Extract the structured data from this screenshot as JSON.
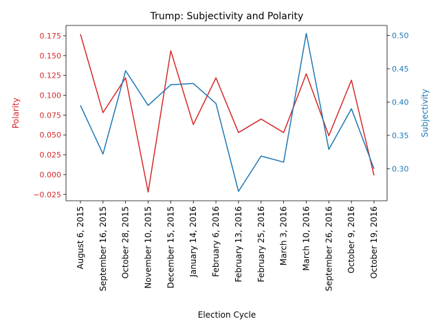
{
  "chart_data": {
    "type": "line",
    "title": "Trump: Subjectivity and Polarity",
    "xlabel": "Election Cycle",
    "categories": [
      "August 6, 2015",
      "September 16, 2015",
      "October 28, 2015",
      "November 10, 2015",
      "December 15, 2015",
      "January 14, 2016",
      "February 6, 2016",
      "February 13, 2016",
      "February 25, 2016",
      "March 3, 2016",
      "March 10, 2016",
      "September 26, 2016",
      "October 9, 2016",
      "October 19, 2016"
    ],
    "y_left": {
      "label": "Polarity",
      "color": "#d62728",
      "lim": [
        -0.033,
        0.188
      ],
      "ticks": [
        -0.025,
        0.0,
        0.025,
        0.05,
        0.075,
        0.1,
        0.125,
        0.15,
        0.175
      ],
      "tick_labels": [
        "−0.025",
        "0.000",
        "0.025",
        "0.050",
        "0.075",
        "0.100",
        "0.125",
        "0.150",
        "0.175"
      ]
    },
    "y_right": {
      "label": "Subjectivity",
      "color": "#1f77b4",
      "lim": [
        0.252,
        0.515
      ],
      "ticks": [
        0.3,
        0.35,
        0.4,
        0.45,
        0.5
      ],
      "tick_labels": [
        "0.30",
        "0.35",
        "0.40",
        "0.45",
        "0.50"
      ]
    },
    "series": [
      {
        "name": "Polarity",
        "axis": "left",
        "color": "#d62728",
        "values": [
          0.177,
          0.078,
          0.122,
          -0.022,
          0.156,
          0.063,
          0.122,
          0.053,
          0.07,
          0.053,
          0.127,
          0.049,
          0.119,
          -0.001
        ]
      },
      {
        "name": "Subjectivity",
        "axis": "right",
        "color": "#1f77b4",
        "values": [
          0.395,
          0.322,
          0.447,
          0.395,
          0.426,
          0.428,
          0.398,
          0.266,
          0.319,
          0.31,
          0.503,
          0.329,
          0.39,
          0.3
        ]
      }
    ],
    "grid": false,
    "legend": "none"
  }
}
